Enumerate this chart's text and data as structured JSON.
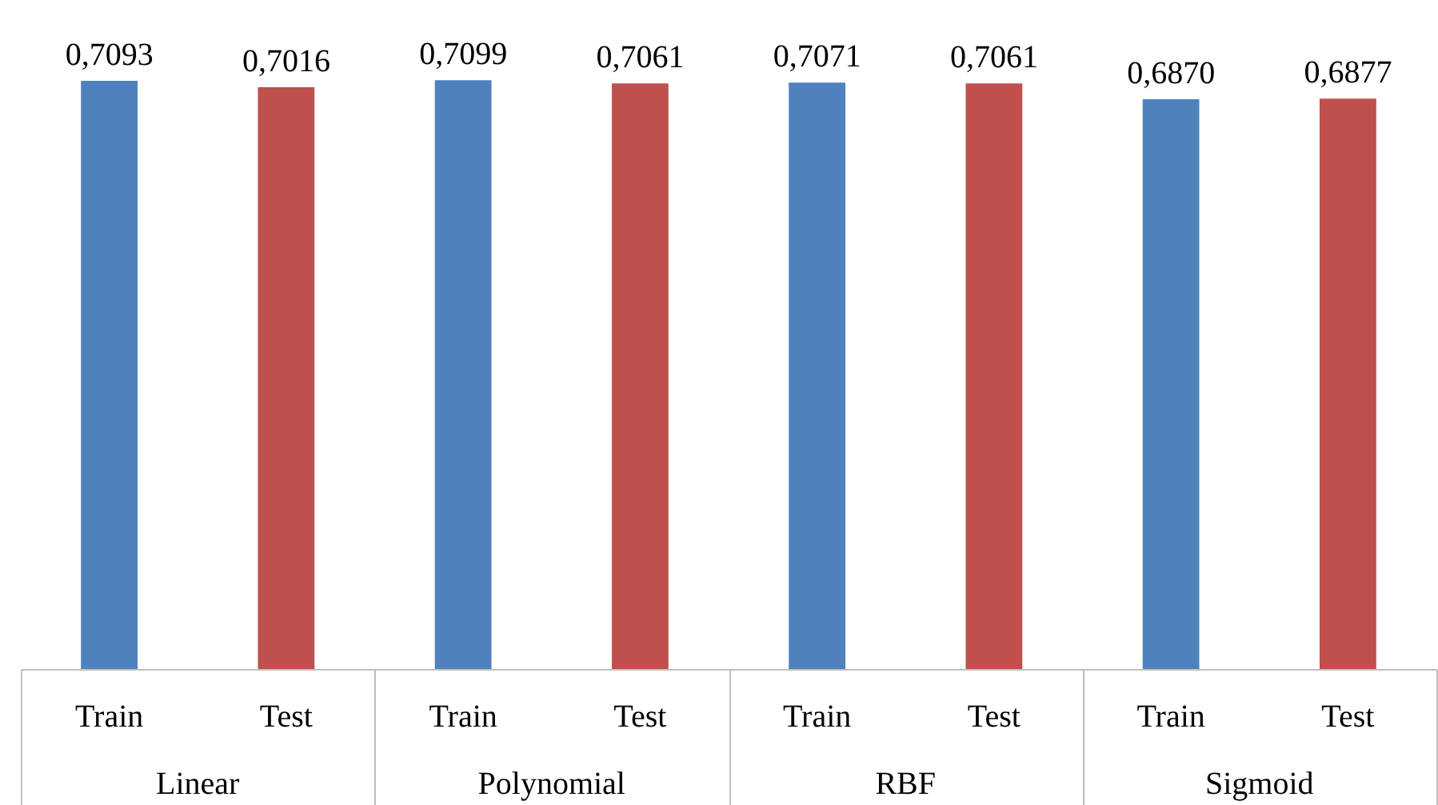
{
  "chart_data": {
    "type": "bar",
    "categories": [
      "Linear",
      "Polynomial",
      "RBF",
      "Sigmoid"
    ],
    "series": [
      {
        "name": "Train",
        "color": "#4f81bd",
        "values": [
          0.7093,
          0.7099,
          0.7071,
          0.687
        ],
        "value_labels": [
          "0,7093",
          "0,7099",
          "0,7071",
          "0,6870"
        ]
      },
      {
        "name": "Test",
        "color": "#c0504d",
        "values": [
          0.7016,
          0.7061,
          0.7061,
          0.6877
        ],
        "value_labels": [
          "0,7016",
          "0,7061",
          "0,7061",
          "0,6877"
        ]
      }
    ],
    "grid": false
  }
}
